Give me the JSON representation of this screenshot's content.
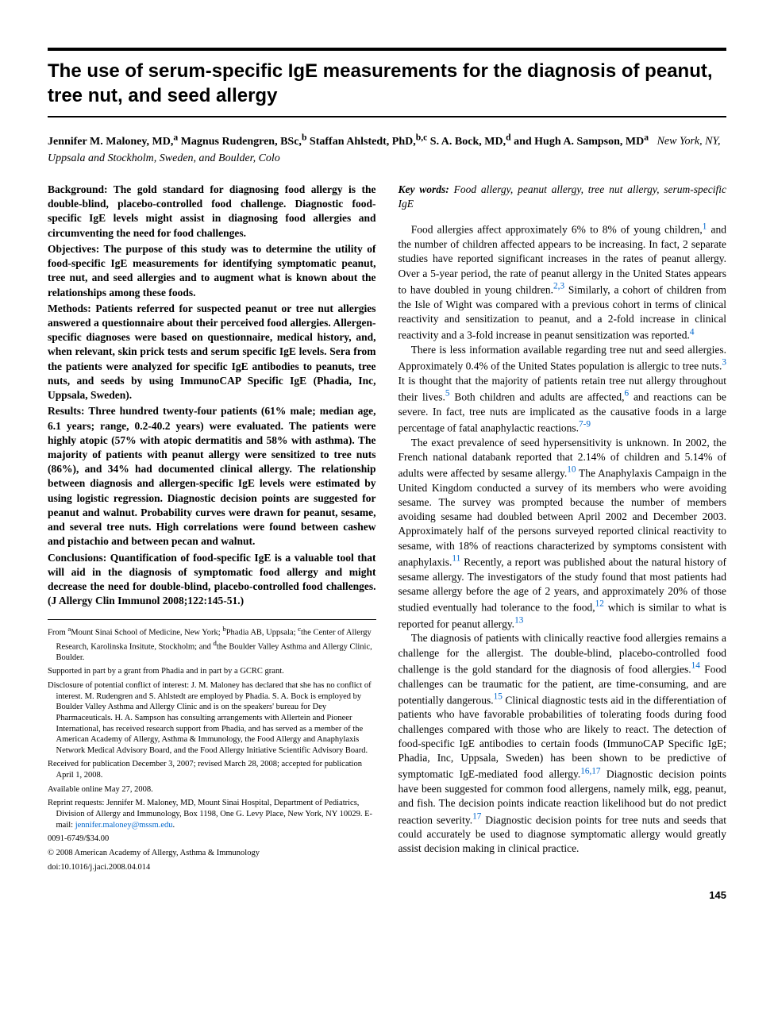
{
  "title": "The use of serum-specific IgE measurements for the diagnosis of peanut, tree nut, and seed allergy",
  "authors_html": "Jennifer M. Maloney, MD,<sup>a</sup> Magnus Rudengren, BSc,<sup>b</sup> Staffan Ahlstedt, PhD,<sup>b,c</sup> S. A. Bock, MD,<sup>d</sup> and Hugh A. Sampson, MD<sup>a</sup>",
  "affiliation_location": "New York, NY, Uppsala and Stockholm, Sweden, and Boulder, Colo",
  "abstract": {
    "background": "Background: The gold standard for diagnosing food allergy is the double-blind, placebo-controlled food challenge. Diagnostic food-specific IgE levels might assist in diagnosing food allergies and circumventing the need for food challenges.",
    "objectives": "Objectives: The purpose of this study was to determine the utility of food-specific IgE measurements for identifying symptomatic peanut, tree nut, and seed allergies and to augment what is known about the relationships among these foods.",
    "methods": "Methods: Patients referred for suspected peanut or tree nut allergies answered a questionnaire about their perceived food allergies. Allergen-specific diagnoses were based on questionnaire, medical history, and, when relevant, skin prick tests and serum specific IgE levels. Sera from the patients were analyzed for specific IgE antibodies to peanuts, tree nuts, and seeds by using ImmunoCAP Specific IgE (Phadia, Inc, Uppsala, Sweden).",
    "results": "Results: Three hundred twenty-four patients (61% male; median age, 6.1 years; range, 0.2-40.2 years) were evaluated. The patients were highly atopic (57% with atopic dermatitis and 58% with asthma). The majority of patients with peanut allergy were sensitized to tree nuts (86%), and 34% had documented clinical allergy. The relationship between diagnosis and allergen-specific IgE levels were estimated by using logistic regression. Diagnostic decision points are suggested for peanut and walnut. Probability curves were drawn for peanut, sesame, and several tree nuts. High correlations were found between cashew and pistachio and between pecan and walnut.",
    "conclusions": "Conclusions: Quantification of food-specific IgE is a valuable tool that will aid in the diagnosis of symptomatic food allergy and might decrease the need for double-blind, placebo-controlled food challenges. (J Allergy Clin Immunol 2008;122:145-51.)"
  },
  "keywords": {
    "label": "Key words:",
    "text": "Food allergy, peanut allergy, tree nut allergy, serum-specific IgE"
  },
  "body": {
    "p1_pre": "Food allergies affect approximately 6% to 8% of young children,",
    "r1": "1",
    "p1_mid": " and the number of children affected appears to be increasing. In fact, 2 separate studies have reported significant increases in the rates of peanut allergy. Over a 5-year period, the rate of peanut allergy in the United States appears to have doubled in young children.",
    "r23": "2,3",
    "p1_mid2": " Similarly, a cohort of children from the Isle of Wight was compared with a previous cohort in terms of clinical reactivity and sensitization to peanut, and a 2-fold increase in clinical reactivity and a 3-fold increase in peanut sensitization was reported.",
    "r4": "4",
    "p2_pre": "There is less information available regarding tree nut and seed allergies. Approximately 0.4% of the United States population is allergic to tree nuts.",
    "r3": "3",
    "p2_mid": " It is thought that the majority of patients retain tree nut allergy throughout their lives.",
    "r5": "5",
    "p2_mid2": " Both children and adults are affected,",
    "r6": "6",
    "p2_mid3": " and reactions can be severe. In fact, tree nuts are implicated as the causative foods in a large percentage of fatal anaphylactic reactions.",
    "r79": "7-9",
    "p3_pre": "The exact prevalence of seed hypersensitivity is unknown. In 2002, the French national databank reported that 2.14% of children and 5.14% of adults were affected by sesame allergy.",
    "r10": "10",
    "p3_mid": " The Anaphylaxis Campaign in the United Kingdom conducted a survey of its members who were avoiding sesame. The survey was prompted because the number of members avoiding sesame had doubled between April 2002 and December 2003. Approximately half of the persons surveyed reported clinical reactivity to sesame, with 18% of reactions characterized by symptoms consistent with anaphylaxis.",
    "r11": "11",
    "p3_mid2": " Recently, a report was published about the natural history of sesame allergy. The investigators of the study found that most patients had sesame allergy before the age of 2 years, and approximately 20% of those studied eventually had tolerance to the food,",
    "r12": "12",
    "p3_mid3": " which is similar to what is reported for peanut allergy.",
    "r13": "13",
    "p4_pre": "The diagnosis of patients with clinically reactive food allergies remains a challenge for the allergist. The double-blind, placebo-controlled food challenge is the gold standard for the diagnosis of food allergies.",
    "r14": "14",
    "p4_mid": " Food challenges can be traumatic for the patient, are time-consuming, and are potentially dangerous.",
    "r15": "15",
    "p4_mid2": " Clinical diagnostic tests aid in the differentiation of patients who have favorable probabilities of tolerating foods during food challenges compared with those who are likely to react. The detection of food-specific IgE antibodies to certain foods (ImmunoCAP Specific IgE; Phadia, Inc, Uppsala, Sweden) has been shown to be predictive of symptomatic IgE-mediated food allergy.",
    "r1617": "16,17",
    "p4_mid3": " Diagnostic decision points have been suggested for common food allergens, namely milk, egg, peanut, and fish. The decision points indicate reaction likelihood but do not predict reaction severity.",
    "r17": "17",
    "p4_end": " Diagnostic decision points for tree nuts and seeds that could accurately be used to diagnose symptomatic allergy would greatly assist decision making in clinical practice."
  },
  "footnotes": {
    "from_pre": "From ",
    "from_a": "a",
    "from_a_txt": "Mount Sinai School of Medicine, New York; ",
    "from_b": "b",
    "from_b_txt": "Phadia AB, Uppsala; ",
    "from_c": "c",
    "from_c_txt": "the Center of Allergy Research, Karolinska Insitute, Stockholm; and ",
    "from_d": "d",
    "from_d_txt": "the Boulder Valley Asthma and Allergy Clinic, Boulder.",
    "supported": "Supported in part by a grant from Phadia and in part by a GCRC grant.",
    "disclosure": "Disclosure of potential conflict of interest: J. M. Maloney has declared that she has no conflict of interest. M. Rudengren and S. Ahlstedt are employed by Phadia. S. A. Bock is employed by Boulder Valley Asthma and Allergy Clinic and is on the speakers' bureau for Dey Pharmaceuticals. H. A. Sampson has consulting arrangements with Allertein and Pioneer International, has received research support from Phadia, and has served as a member of the American Academy of Allergy, Asthma & Immunology, the Food Allergy and Anaphylaxis Network Medical Advisory Board, and the Food Allergy Initiative Scientific Advisory Board.",
    "received": "Received for publication December 3, 2007; revised March 28, 2008; accepted for publication April 1, 2008.",
    "online": "Available online May 27, 2008.",
    "reprint_pre": "Reprint requests: Jennifer M. Maloney, MD, Mount Sinai Hospital, Department of Pediatrics, Division of Allergy and Immunology, Box 1198, One G. Levy Place, New York, NY 10029. E-mail: ",
    "email": "jennifer.maloney@mssm.edu",
    "reprint_post": ".",
    "issn": "0091-6749/$34.00",
    "copyright": "© 2008 American Academy of Allergy, Asthma & Immunology",
    "doi": "doi:10.1016/j.jaci.2008.04.014"
  },
  "page_number": "145",
  "colors": {
    "link": "#0066cc",
    "text": "#000000",
    "bg": "#ffffff",
    "rule": "#000000"
  }
}
